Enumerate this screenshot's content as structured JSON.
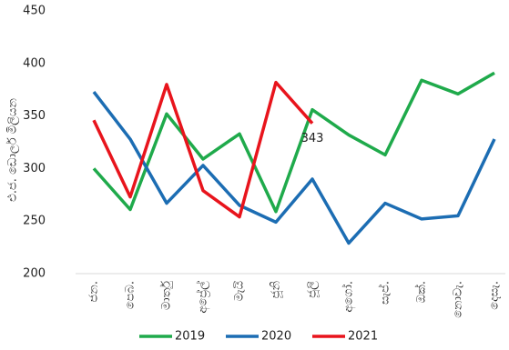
{
  "chart_data": {
    "type": "line",
    "y_label": "එ.ජ. ඩොලර් මිලියන",
    "categories": [
      "ජන.",
      "පෙබ.",
      "මාර්තු",
      "අප්‍රේල්",
      "මැයි",
      "ජූනි",
      "ජූලි",
      "අගෝ.",
      "සැප්.",
      "ඔක්.",
      "නොවැ.",
      "දෙසැ."
    ],
    "series": [
      {
        "name": "2019",
        "color": "#1faa4b",
        "values": [
          300,
          261,
          352,
          309,
          333,
          259,
          356,
          332,
          313,
          384,
          371,
          391
        ]
      },
      {
        "name": "2020",
        "color": "#1c6db3",
        "values": [
          373,
          328,
          267,
          303,
          265,
          249,
          290,
          229,
          267,
          252,
          255,
          328
        ]
      },
      {
        "name": "2021",
        "color": "#e8141c",
        "values": [
          346,
          273,
          380,
          279,
          254,
          382,
          343,
          null,
          null,
          null,
          null,
          null
        ],
        "value_labels": [
          null,
          null,
          null,
          null,
          null,
          null,
          "343",
          null,
          null,
          null,
          null,
          null
        ]
      }
    ],
    "ylim": [
      200,
      450
    ],
    "yticks": [
      200,
      250,
      300,
      350,
      400,
      450
    ],
    "grid": false,
    "legend": "bottom"
  }
}
